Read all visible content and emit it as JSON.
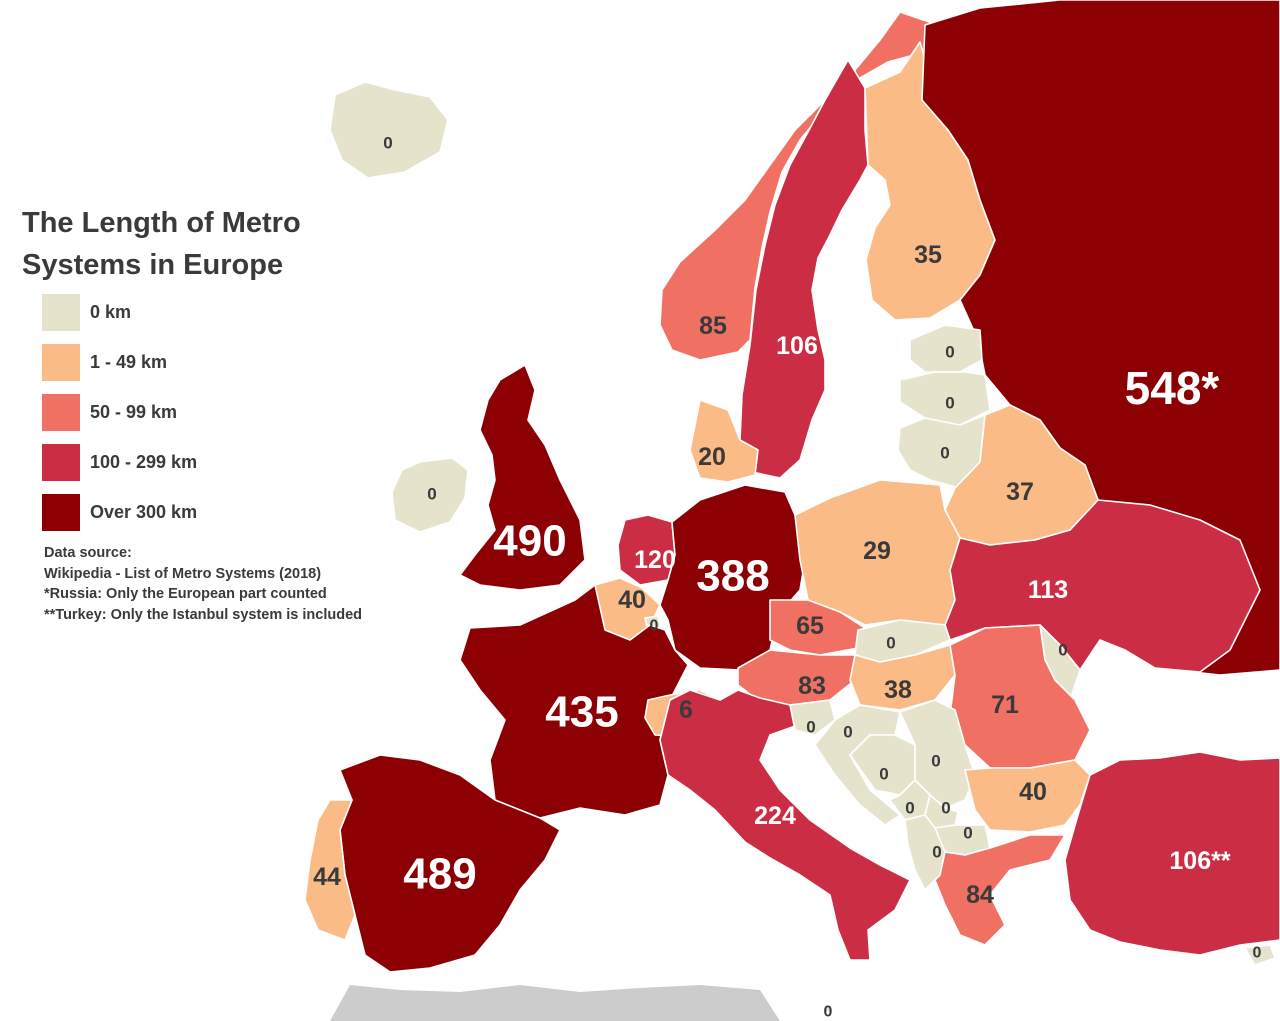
{
  "title_line1": "The Length of Metro",
  "title_line2": "Systems in Europe",
  "legend": [
    {
      "label": "0 km",
      "color": "#e6e3cc"
    },
    {
      "label": "1 - 49 km",
      "color": "#fbbb87"
    },
    {
      "label": "50 - 99 km",
      "color": "#f07163"
    },
    {
      "label": "100 - 299 km",
      "color": "#cb2e44"
    },
    {
      "label": "Over 300 km",
      "color": "#8c0004"
    }
  ],
  "source": {
    "heading": "Data source:",
    "line1": "Wikipedia - List of Metro Systems (2018)",
    "note_russia": "*Russia: Only the European part counted",
    "note_turkey": "**Turkey: Only the Istanbul system is included"
  },
  "colors": {
    "sea": "#ffffff",
    "outside": "#cccccc"
  },
  "countries": [
    {
      "id": "iceland",
      "value": "0",
      "cls": 0
    },
    {
      "id": "norway",
      "value": "85",
      "cls": 2
    },
    {
      "id": "sweden",
      "value": "106",
      "cls": 3
    },
    {
      "id": "finland",
      "value": "35",
      "cls": 1
    },
    {
      "id": "russia",
      "value": "548*",
      "cls": 4
    },
    {
      "id": "estonia",
      "value": "0",
      "cls": 0
    },
    {
      "id": "latvia",
      "value": "0",
      "cls": 0
    },
    {
      "id": "lithuania",
      "value": "0",
      "cls": 0
    },
    {
      "id": "belarus",
      "value": "37",
      "cls": 1
    },
    {
      "id": "uk",
      "value": "490",
      "cls": 4
    },
    {
      "id": "ireland",
      "value": "0",
      "cls": 0
    },
    {
      "id": "denmark",
      "value": "20",
      "cls": 1
    },
    {
      "id": "netherlands",
      "value": "120",
      "cls": 3
    },
    {
      "id": "belgium",
      "value": "40",
      "cls": 1
    },
    {
      "id": "luxembourg",
      "value": "0",
      "cls": 0
    },
    {
      "id": "germany",
      "value": "388",
      "cls": 4
    },
    {
      "id": "poland",
      "value": "29",
      "cls": 1
    },
    {
      "id": "ukraine",
      "value": "113",
      "cls": 3
    },
    {
      "id": "czechia",
      "value": "65",
      "cls": 2
    },
    {
      "id": "slovakia",
      "value": "0",
      "cls": 0
    },
    {
      "id": "austria",
      "value": "83",
      "cls": 2
    },
    {
      "id": "hungary",
      "value": "38",
      "cls": 1
    },
    {
      "id": "moldova",
      "value": "0",
      "cls": 0
    },
    {
      "id": "romania",
      "value": "71",
      "cls": 2
    },
    {
      "id": "france",
      "value": "435",
      "cls": 4
    },
    {
      "id": "switzerland",
      "value": "6",
      "cls": 1
    },
    {
      "id": "italy",
      "value": "224",
      "cls": 3
    },
    {
      "id": "slovenia",
      "value": "0",
      "cls": 0
    },
    {
      "id": "croatia",
      "value": "0",
      "cls": 0
    },
    {
      "id": "bosnia",
      "value": "0",
      "cls": 0
    },
    {
      "id": "serbia",
      "value": "0",
      "cls": 0
    },
    {
      "id": "montenegro",
      "value": "0",
      "cls": 0
    },
    {
      "id": "kosovo",
      "value": "0",
      "cls": 0
    },
    {
      "id": "macedonia",
      "value": "0",
      "cls": 0
    },
    {
      "id": "albania",
      "value": "0",
      "cls": 0
    },
    {
      "id": "bulgaria",
      "value": "40",
      "cls": 1
    },
    {
      "id": "greece",
      "value": "84",
      "cls": 2
    },
    {
      "id": "turkey",
      "value": "106**",
      "cls": 3
    },
    {
      "id": "spain",
      "value": "489",
      "cls": 4
    },
    {
      "id": "portugal",
      "value": "44",
      "cls": 1
    },
    {
      "id": "cyprus",
      "value": "0",
      "cls": 0
    },
    {
      "id": "malta",
      "value": "0",
      "cls": 0
    }
  ]
}
